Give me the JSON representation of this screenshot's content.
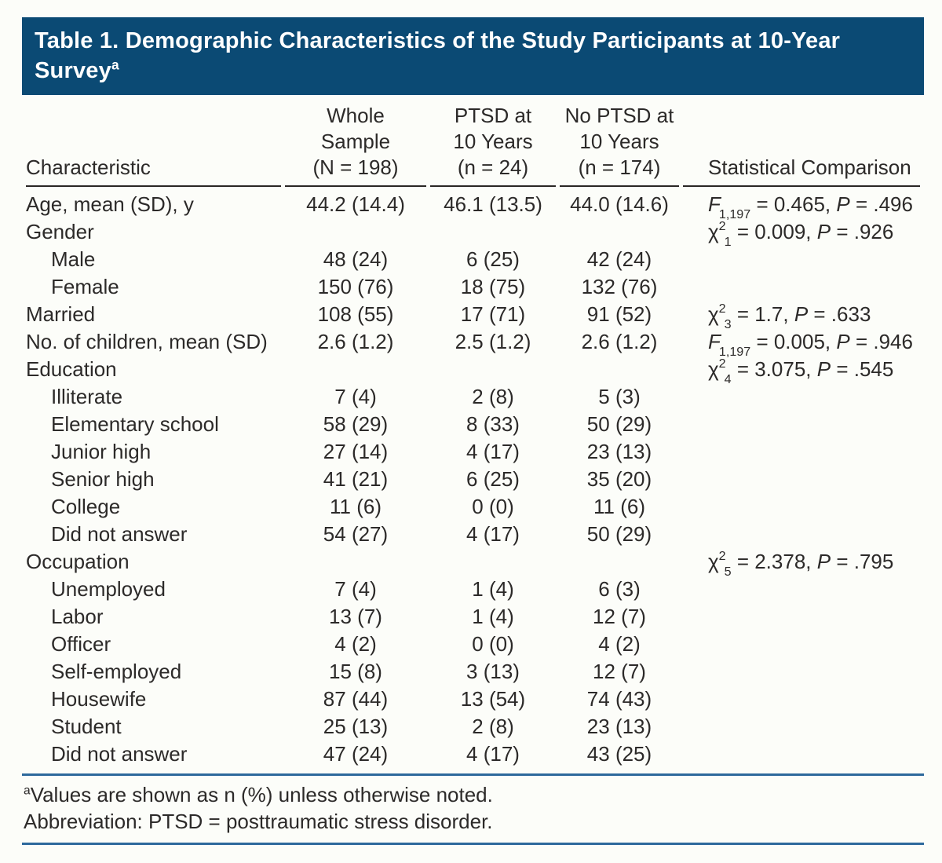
{
  "title": {
    "line1": "Table 1. Demographic Characteristics of the Study Participants at 10-Year",
    "line2": "Survey",
    "superscript": "a"
  },
  "colors": {
    "title_bar_background": "#0b4a74",
    "title_text": "#ffffff",
    "blue_rule": "#2d699c",
    "header_underline": "#2a2725",
    "body_text": "#2c2a29",
    "page_background": "#fcfdf9"
  },
  "columns": {
    "characteristic": "Characteristic",
    "whole_sample": [
      "Whole",
      "Sample",
      "(N = 198)"
    ],
    "ptsd": [
      "PTSD at",
      "10 Years",
      "(n = 24)"
    ],
    "no_ptsd": [
      "No PTSD at",
      "10 Years",
      "(n = 174)"
    ],
    "statistical_comparison": "Statistical Comparison"
  },
  "rows": [
    {
      "label": "Age, mean (SD), y",
      "indent": false,
      "values": [
        "44.2 (14.4)",
        "46.1 (13.5)",
        "44.0 (14.6)"
      ],
      "stat": {
        "symbol": "F",
        "italic": true,
        "sup": "",
        "sub": "1,197",
        "value": " = 0.465, ",
        "p_label": "P",
        "p_value": " = .496"
      }
    },
    {
      "label": "Gender",
      "indent": false,
      "values": [
        "",
        "",
        ""
      ],
      "stat": {
        "symbol": "χ",
        "italic": false,
        "sup": "2",
        "sub": "1",
        "value": " = 0.009, ",
        "p_label": "P",
        "p_value": " = .926"
      }
    },
    {
      "label": "Male",
      "indent": true,
      "values": [
        "48 (24)",
        "6 (25)",
        "42 (24)"
      ],
      "stat": null
    },
    {
      "label": "Female",
      "indent": true,
      "values": [
        "150 (76)",
        "18 (75)",
        "132 (76)"
      ],
      "stat": null
    },
    {
      "label": "Married",
      "indent": false,
      "values": [
        "108 (55)",
        "17 (71)",
        "91 (52)"
      ],
      "stat": {
        "symbol": "χ",
        "italic": false,
        "sup": "2",
        "sub": "3",
        "value": " = 1.7, ",
        "p_label": "P",
        "p_value": " = .633"
      }
    },
    {
      "label": "No. of children, mean (SD)",
      "indent": false,
      "values": [
        "2.6 (1.2)",
        "2.5 (1.2)",
        "2.6 (1.2)"
      ],
      "stat": {
        "symbol": "F",
        "italic": true,
        "sup": "",
        "sub": "1,197",
        "value": " = 0.005, ",
        "p_label": "P",
        "p_value": " = .946"
      }
    },
    {
      "label": "Education",
      "indent": false,
      "values": [
        "",
        "",
        ""
      ],
      "stat": {
        "symbol": "χ",
        "italic": false,
        "sup": "2",
        "sub": "4",
        "value": " = 3.075, ",
        "p_label": "P",
        "p_value": " = .545"
      }
    },
    {
      "label": "Illiterate",
      "indent": true,
      "values": [
        "7 (4)",
        "2 (8)",
        "5 (3)"
      ],
      "stat": null
    },
    {
      "label": "Elementary school",
      "indent": true,
      "values": [
        "58 (29)",
        "8 (33)",
        "50 (29)"
      ],
      "stat": null
    },
    {
      "label": "Junior high",
      "indent": true,
      "values": [
        "27 (14)",
        "4 (17)",
        "23 (13)"
      ],
      "stat": null
    },
    {
      "label": "Senior high",
      "indent": true,
      "values": [
        "41 (21)",
        "6 (25)",
        "35 (20)"
      ],
      "stat": null
    },
    {
      "label": "College",
      "indent": true,
      "values": [
        "11 (6)",
        "0 (0)",
        "11 (6)"
      ],
      "stat": null
    },
    {
      "label": "Did not answer",
      "indent": true,
      "values": [
        "54 (27)",
        "4 (17)",
        "50 (29)"
      ],
      "stat": null
    },
    {
      "label": "Occupation",
      "indent": false,
      "values": [
        "",
        "",
        ""
      ],
      "stat": {
        "symbol": "χ",
        "italic": false,
        "sup": "2",
        "sub": "5",
        "value": " = 2.378, ",
        "p_label": "P",
        "p_value": " = .795"
      }
    },
    {
      "label": "Unemployed",
      "indent": true,
      "values": [
        "7 (4)",
        "1 (4)",
        "6 (3)"
      ],
      "stat": null
    },
    {
      "label": "Labor",
      "indent": true,
      "values": [
        "13 (7)",
        "1 (4)",
        "12 (7)"
      ],
      "stat": null
    },
    {
      "label": "Officer",
      "indent": true,
      "values": [
        "4 (2)",
        "0 (0)",
        "4 (2)"
      ],
      "stat": null
    },
    {
      "label": "Self-employed",
      "indent": true,
      "values": [
        "15 (8)",
        "3 (13)",
        "12 (7)"
      ],
      "stat": null
    },
    {
      "label": "Housewife",
      "indent": true,
      "values": [
        "87 (44)",
        "13 (54)",
        "74 (43)"
      ],
      "stat": null
    },
    {
      "label": "Student",
      "indent": true,
      "values": [
        "25 (13)",
        "2 (8)",
        "23 (13)"
      ],
      "stat": null
    },
    {
      "label": "Did not answer",
      "indent": true,
      "values": [
        "47 (24)",
        "4 (17)",
        "43 (25)"
      ],
      "stat": null
    }
  ],
  "footnotes": {
    "note_superscript": "a",
    "note_text": "Values are shown as n (%) unless otherwise noted.",
    "abbreviation_text": "Abbreviation: PTSD = posttraumatic stress disorder."
  }
}
